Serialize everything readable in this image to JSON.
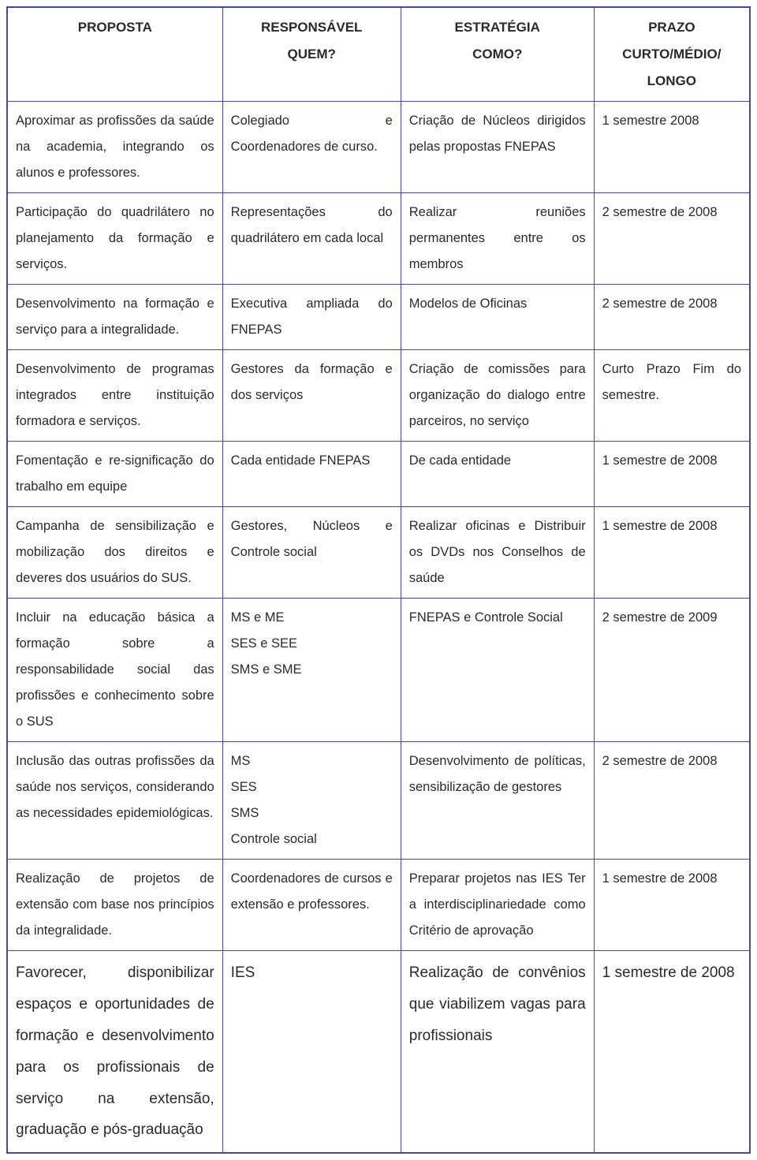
{
  "headers": {
    "proposta": "PROPOSTA",
    "responsavel_l1": "RESPONSÁVEL",
    "responsavel_l2": "QUEM?",
    "estrategia_l1": "ESTRATÉGIA",
    "estrategia_l2": "COMO?",
    "prazo_l1": "PRAZO",
    "prazo_l2": "CURTO/MÉDIO/",
    "prazo_l3": "LONGO"
  },
  "rows": [
    {
      "proposta": "Aproximar as profissões da saúde na academia, integrando os alunos e professores.",
      "responsavel": "Colegiado e Coordenadores de curso.",
      "estrategia": "Criação de Núcleos dirigidos pelas propostas FNEPAS",
      "prazo": "1 semestre 2008"
    },
    {
      "proposta": "Participação do quadrilátero no planejamento da formação e serviços.",
      "responsavel": "Representações do quadrilátero em cada local",
      "estrategia": "Realizar reuniões permanentes entre os membros",
      "prazo": "2 semestre de 2008"
    },
    {
      "proposta": "Desenvolvimento na formação e serviço para a integralidade.",
      "responsavel": "Executiva ampliada do FNEPAS",
      "estrategia": "Modelos de Oficinas",
      "prazo": "2 semestre de 2008"
    },
    {
      "proposta": "Desenvolvimento de programas integrados entre instituição formadora e serviços.",
      "responsavel": "Gestores da formação e dos serviços",
      "estrategia": "Criação de comissões para organização do dialogo entre parceiros, no serviço",
      "prazo": "Curto Prazo Fim do semestre."
    },
    {
      "proposta": "Fomentação e re-significação do trabalho em equipe",
      "responsavel": "Cada entidade FNEPAS",
      "estrategia": "De cada entidade",
      "prazo": "1 semestre de 2008"
    },
    {
      "proposta": "Campanha de sensibilização e mobilização dos direitos e deveres dos usuários do SUS.",
      "responsavel": "Gestores, Núcleos e Controle social",
      "estrategia": "Realizar oficinas e Distribuir os DVDs nos Conselhos de saúde",
      "prazo": "1 semestre de 2008"
    },
    {
      "proposta": "Incluir na educação básica a formação sobre a responsabilidade social das profissões e conhecimento sobre o SUS",
      "responsavel": "MS e ME\nSES e SEE\nSMS e SME",
      "estrategia": "FNEPAS e Controle Social",
      "prazo": "2 semestre de 2009"
    },
    {
      "proposta": "Inclusão das outras profissões da saúde nos serviços, considerando as necessidades epidemiológicas.",
      "responsavel": "MS\nSES\nSMS\nControle social",
      "estrategia": "Desenvolvimento de políticas, sensibilização de gestores",
      "prazo": "2 semestre de 2008"
    },
    {
      "proposta": "Realização de projetos de extensão com base nos princípios da integralidade.",
      "responsavel": "Coordenadores de cursos e extensão e professores.",
      "estrategia": "Preparar projetos nas IES Ter a interdisciplinariedade como Critério de aprovação",
      "prazo": "1 semestre de 2008"
    },
    {
      "proposta": "Favorecer, disponibilizar espaços e oportunidades de formação e desenvolvimento para os profissionais de serviço na extensão, graduação e pós-graduação",
      "responsavel": "IES",
      "estrategia": "Realização de convênios que viabilizem vagas para profissionais",
      "prazo": "1 semestre de 2008",
      "bigger": true
    }
  ],
  "styling": {
    "border_color": "#4848a0",
    "text_color": "#2a2a2a",
    "background_color": "#ffffff",
    "font_family": "Arial",
    "base_font_size": 16.5,
    "header_font_size": 17,
    "bigger_font_size": 19,
    "line_height": 2.0,
    "column_widths_pct": [
      29,
      24,
      26,
      21
    ]
  }
}
